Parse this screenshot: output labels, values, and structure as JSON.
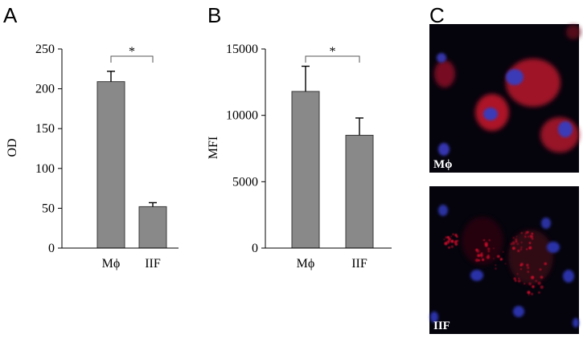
{
  "colors": {
    "bar_fill": "#898989",
    "bar_stroke": "#3a3a3a",
    "axis": "#000000",
    "micro_background": "#05040d",
    "micro_red": "#c8102a",
    "micro_blue": "#2a35c8"
  },
  "panels": {
    "a": {
      "letter": "A"
    },
    "b": {
      "letter": "B"
    },
    "c": {
      "letter": "C",
      "images": [
        {
          "label": "Mϕ"
        },
        {
          "label": "IIF"
        }
      ]
    }
  },
  "chart_data": [
    {
      "type": "bar",
      "panel": "A",
      "categories": [
        "Mϕ",
        "IIF"
      ],
      "values": [
        209,
        52
      ],
      "errors": [
        13,
        5
      ],
      "ylabel": "OD",
      "ylim": [
        0,
        250
      ],
      "yticks": [
        "0",
        "50",
        "100",
        "150",
        "200",
        "250"
      ],
      "significance": "*",
      "grid": false
    },
    {
      "type": "bar",
      "panel": "B",
      "categories": [
        "Mϕ",
        "IIF"
      ],
      "values": [
        11800,
        8500
      ],
      "errors": [
        1900,
        1300
      ],
      "ylabel": "MFI",
      "ylim": [
        0,
        15000
      ],
      "yticks": [
        "0",
        "5000",
        "10000",
        "15000"
      ],
      "significance": "*",
      "grid": false
    }
  ]
}
